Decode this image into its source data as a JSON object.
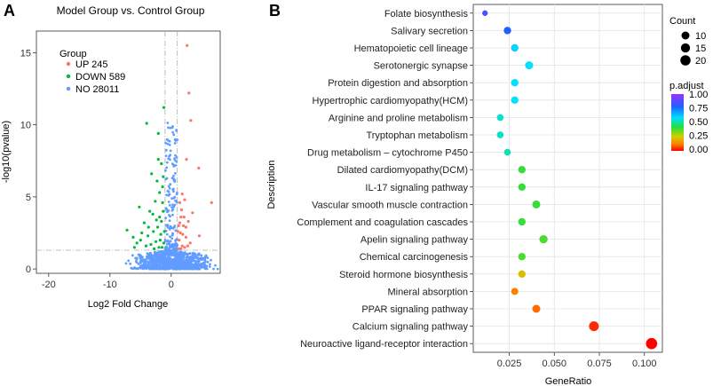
{
  "chart_data": [
    {
      "panel": "A",
      "type": "scatter",
      "title": "Model Group vs. Control Group",
      "xlabel": "Log2 Fold Change",
      "ylabel": "-log10(pvalue)",
      "xlim": [
        -22,
        8
      ],
      "ylim": [
        -0.3,
        16.5
      ],
      "xticks": [
        -20,
        -10,
        0
      ],
      "yticks": [
        0,
        5,
        10,
        15
      ],
      "fold_change_thresholds": [
        -1,
        1
      ],
      "pvalue_threshold": 1.3,
      "legend": {
        "title": "Group",
        "position": "top-left",
        "entries": [
          {
            "label": "UP 245",
            "group": "up",
            "color": "#F8766D"
          },
          {
            "label": "DOWN 589",
            "group": "down",
            "color": "#00BA38"
          },
          {
            "label": "NO 28011",
            "group": "no",
            "color": "#619CFF"
          }
        ]
      },
      "series": [
        {
          "name": "UP",
          "color": "#F8766D",
          "points": [
            [
              2.6,
              15.5
            ],
            [
              2.9,
              12.2
            ],
            [
              3.2,
              10.3
            ],
            [
              2.5,
              7.6
            ],
            [
              4.5,
              7.0
            ],
            [
              6.6,
              4.6
            ],
            [
              1.8,
              5.2
            ],
            [
              2.2,
              4.8
            ],
            [
              1.4,
              4.6
            ],
            [
              3.5,
              3.9
            ],
            [
              2.8,
              3.3
            ],
            [
              4.6,
              2.3
            ],
            [
              1.6,
              3.6
            ],
            [
              2.0,
              3.0
            ],
            [
              1.5,
              2.5
            ],
            [
              2.4,
              2.2
            ],
            [
              1.2,
              3.0
            ],
            [
              1.3,
              2.0
            ],
            [
              1.8,
              1.6
            ],
            [
              2.2,
              1.5
            ],
            [
              3.1,
              1.8
            ],
            [
              2.7,
              1.6
            ],
            [
              1.3,
              1.4
            ],
            [
              1.6,
              1.4
            ],
            [
              1.1,
              2.6
            ],
            [
              1.4,
              3.2
            ],
            [
              1.9,
              2.4
            ],
            [
              2.4,
              2.9
            ],
            [
              1.7,
              4.1
            ],
            [
              2.1,
              3.6
            ]
          ]
        },
        {
          "name": "DOWN",
          "color": "#00BA38",
          "points": [
            [
              -1.2,
              11.2
            ],
            [
              -4.0,
              10.1
            ],
            [
              -2.1,
              9.4
            ],
            [
              -1.6,
              7.3
            ],
            [
              -3.2,
              6.6
            ],
            [
              -2.3,
              6.1
            ],
            [
              -1.9,
              5.3
            ],
            [
              -1.4,
              5.7
            ],
            [
              -2.6,
              4.7
            ],
            [
              -5.2,
              4.3
            ],
            [
              -3.5,
              4.0
            ],
            [
              -4.4,
              3.2
            ],
            [
              -7.2,
              2.7
            ],
            [
              -6.2,
              2.2
            ],
            [
              -5.6,
              1.8
            ],
            [
              -4.8,
              2.5
            ],
            [
              -3.8,
              2.3
            ],
            [
              -2.9,
              2.6
            ],
            [
              -2.2,
              2.9
            ],
            [
              -1.6,
              3.3
            ],
            [
              -1.3,
              4.0
            ],
            [
              -1.1,
              2.6
            ],
            [
              -1.8,
              2.0
            ],
            [
              -2.5,
              1.9
            ],
            [
              -3.3,
              1.7
            ],
            [
              -4.1,
              1.6
            ],
            [
              -1.5,
              1.5
            ],
            [
              -2.0,
              1.5
            ],
            [
              -2.8,
              1.4
            ],
            [
              -1.2,
              1.8
            ],
            [
              -1.7,
              2.4
            ],
            [
              -2.4,
              3.4
            ],
            [
              -3.0,
              3.8
            ],
            [
              -1.4,
              4.6
            ],
            [
              -1.9,
              3.6
            ],
            [
              -3.7,
              2.9
            ],
            [
              -5.0,
              2.0
            ],
            [
              -6.0,
              1.5
            ],
            [
              -2.1,
              7.6
            ],
            [
              -1.3,
              6.4
            ]
          ]
        }
      ]
    },
    {
      "panel": "B",
      "type": "scatter",
      "xlabel": "GeneRatio",
      "ylabel": "Description",
      "xlim": [
        0.005,
        0.11
      ],
      "xticks": [
        0.025,
        0.05,
        0.075,
        0.1
      ],
      "xticklabels": [
        "0.025",
        "0.050",
        "0.075",
        "0.100"
      ],
      "size_legend": {
        "title": "Count",
        "values": [
          10,
          15,
          20
        ]
      },
      "color_legend": {
        "title": "p.adjust",
        "min": 0.0,
        "max": 1.0,
        "tick_labels": [
          "1.00",
          "0.75",
          "0.50",
          "0.25",
          "0.00"
        ]
      },
      "terms": [
        {
          "description": "Folate biosynthesis",
          "gene_ratio": 0.0115,
          "count": 3,
          "p_adjust": 0.85
        },
        {
          "description": "Salivary secretion",
          "gene_ratio": 0.024,
          "count": 8,
          "p_adjust": 0.78
        },
        {
          "description": "Hematopoietic cell lineage",
          "gene_ratio": 0.028,
          "count": 8,
          "p_adjust": 0.6
        },
        {
          "description": "Serotonergic synapse",
          "gene_ratio": 0.036,
          "count": 10,
          "p_adjust": 0.58
        },
        {
          "description": "Protein digestion and absorption",
          "gene_ratio": 0.028,
          "count": 8,
          "p_adjust": 0.58
        },
        {
          "description": "Hypertrophic cardiomyopathy(HCM)",
          "gene_ratio": 0.028,
          "count": 8,
          "p_adjust": 0.58
        },
        {
          "description": "Arginine and proline metabolism",
          "gene_ratio": 0.02,
          "count": 6,
          "p_adjust": 0.54
        },
        {
          "description": "Tryptophan metabolism",
          "gene_ratio": 0.02,
          "count": 6,
          "p_adjust": 0.53
        },
        {
          "description": "Drug metabolism – cytochrome P450",
          "gene_ratio": 0.024,
          "count": 6,
          "p_adjust": 0.52
        },
        {
          "description": "Dilated cardiomyopathy(DCM)",
          "gene_ratio": 0.032,
          "count": 8,
          "p_adjust": 0.4
        },
        {
          "description": "IL-17 signaling pathway",
          "gene_ratio": 0.032,
          "count": 8,
          "p_adjust": 0.4
        },
        {
          "description": "Vascular smooth muscle contraction",
          "gene_ratio": 0.04,
          "count": 10,
          "p_adjust": 0.4
        },
        {
          "description": "Complement and coagulation cascades",
          "gene_ratio": 0.032,
          "count": 8,
          "p_adjust": 0.4
        },
        {
          "description": "Apelin signaling pathway",
          "gene_ratio": 0.044,
          "count": 11,
          "p_adjust": 0.38
        },
        {
          "description": "Chemical carcinogenesis",
          "gene_ratio": 0.032,
          "count": 8,
          "p_adjust": 0.38
        },
        {
          "description": "Steroid hormone biosynthesis",
          "gene_ratio": 0.032,
          "count": 8,
          "p_adjust": 0.22
        },
        {
          "description": "Mineral absorption",
          "gene_ratio": 0.028,
          "count": 7,
          "p_adjust": 0.12
        },
        {
          "description": "PPAR signaling pathway",
          "gene_ratio": 0.04,
          "count": 10,
          "p_adjust": 0.1
        },
        {
          "description": "Calcium signaling pathway",
          "gene_ratio": 0.072,
          "count": 18,
          "p_adjust": 0.04
        },
        {
          "description": "Neuroactive ligand-receptor interaction",
          "gene_ratio": 0.104,
          "count": 26,
          "p_adjust": 0.0
        }
      ]
    }
  ],
  "panel_labels": {
    "a": "A",
    "b": "B"
  }
}
